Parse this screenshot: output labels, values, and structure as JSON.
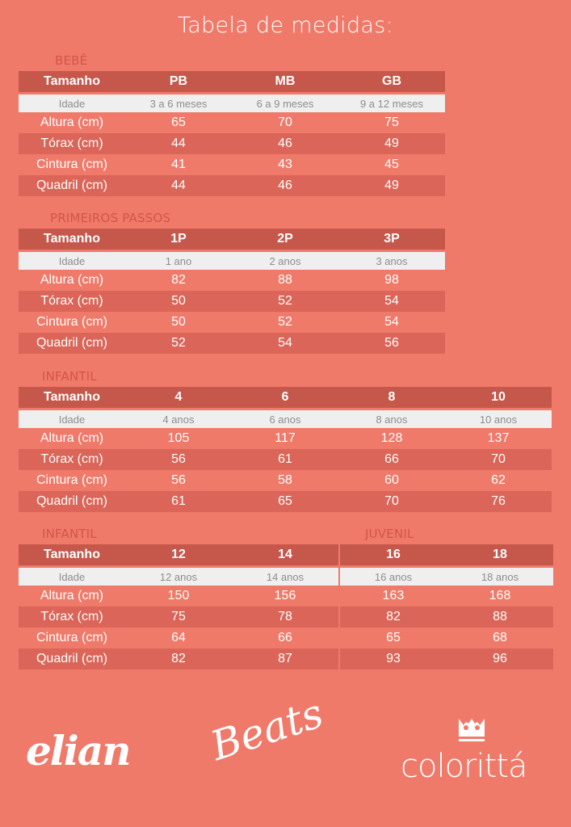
{
  "title": "Tabela de medidas:",
  "row_labels": [
    "Tamanho",
    "Idade",
    "Altura (cm)",
    "Tórax (cm)",
    "Cintura (cm)",
    "Quadril (cm)"
  ],
  "sections": [
    {
      "label": "BEBÊ",
      "sizes": [
        "PB",
        "MB",
        "GB"
      ],
      "ages": [
        "3 a 6 meses",
        "6 a 9 meses",
        "9 a 12 meses"
      ],
      "measures": [
        [
          "65",
          "70",
          "75"
        ],
        [
          "44",
          "46",
          "49"
        ],
        [
          "41",
          "43",
          "45"
        ],
        [
          "44",
          "46",
          "49"
        ]
      ]
    },
    {
      "label": "PRIMEIROS PASSOS",
      "sizes": [
        "1P",
        "2P",
        "3P"
      ],
      "ages": [
        "1 ano",
        "2 anos",
        "3 anos"
      ],
      "measures": [
        [
          "82",
          "88",
          "98"
        ],
        [
          "50",
          "52",
          "54"
        ],
        [
          "50",
          "52",
          "54"
        ],
        [
          "52",
          "54",
          "56"
        ]
      ]
    },
    {
      "label": "INFANTIL",
      "sizes": [
        "4",
        "6",
        "8",
        "10"
      ],
      "ages": [
        "4 anos",
        "6 anos",
        "8 anos",
        "10 anos"
      ],
      "measures": [
        [
          "105",
          "117",
          "128",
          "137"
        ],
        [
          "56",
          "61",
          "66",
          "70"
        ],
        [
          "56",
          "58",
          "60",
          "62"
        ],
        [
          "61",
          "65",
          "70",
          "76"
        ]
      ]
    },
    {
      "label": "INFANTIL",
      "sizes": [
        "12",
        "14"
      ],
      "ages": [
        "12 anos",
        "14 anos"
      ],
      "measures": [
        [
          "150",
          "156"
        ],
        [
          "75",
          "78"
        ],
        [
          "64",
          "66"
        ],
        [
          "82",
          "87"
        ]
      ]
    },
    {
      "label": "JUVENIL",
      "sizes": [
        "16",
        "18"
      ],
      "ages": [
        "16 anos",
        "18 anos"
      ],
      "measures": [
        [
          "163",
          "168"
        ],
        [
          "82",
          "88"
        ],
        [
          "65",
          "68"
        ],
        [
          "93",
          "96"
        ]
      ],
      "no_row_labels": true
    }
  ],
  "logos": {
    "elian": "elian",
    "beats": "Beats",
    "coloritta": "colorittá"
  },
  "colors": {
    "background": "#F07A6A",
    "header": "#C5574B",
    "dark_row": "#DA6558",
    "age_row": "#EFEFEF",
    "section_label": "#D2554A"
  }
}
